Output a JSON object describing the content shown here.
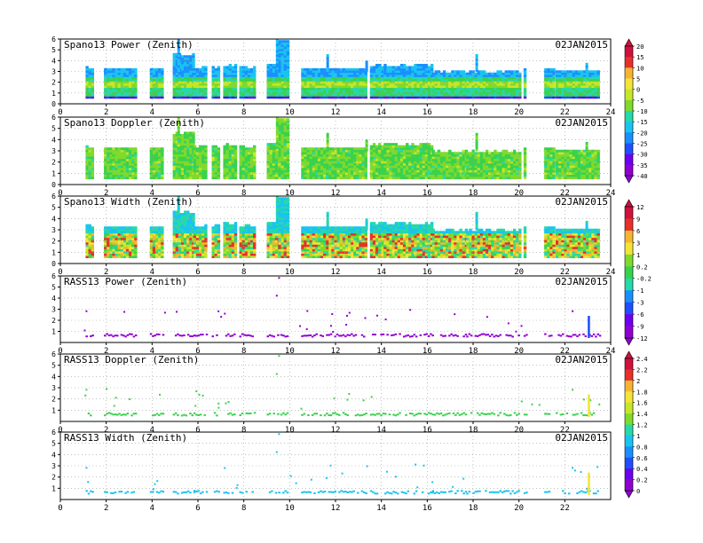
{
  "chart_data": [
    {
      "type": "heatmap",
      "title": "Spano13 Power (Zenith)",
      "date": "02JAN2015",
      "x_ticks": [
        "0",
        "2",
        "4",
        "6",
        "8",
        "10",
        "12",
        "14",
        "16",
        "18",
        "20",
        "22",
        "24"
      ],
      "y_ticks": [
        "0",
        "1",
        "2",
        "3",
        "4",
        "5",
        "6"
      ],
      "xlim": [
        0,
        24
      ],
      "ylim": [
        0,
        6
      ],
      "colorbar_ticks": [
        "20",
        "15",
        "10",
        "5",
        "0",
        "-5",
        "-10",
        "-15",
        "-20",
        "-25",
        "-30",
        "-35",
        "-40"
      ]
    },
    {
      "type": "heatmap",
      "title": "Spano13 Doppler (Zenith)",
      "date": "02JAN2015",
      "x_ticks": [
        "0",
        "2",
        "4",
        "6",
        "8",
        "10",
        "12",
        "14",
        "16",
        "18",
        "20",
        "22",
        "24"
      ],
      "y_ticks": [
        "0",
        "1",
        "2",
        "3",
        "4",
        "5",
        "6"
      ],
      "xlim": [
        0,
        24
      ],
      "ylim": [
        0,
        6
      ]
    },
    {
      "type": "heatmap",
      "title": "Spano13 Width (Zenith)",
      "date": "02JAN2015",
      "x_ticks": [
        "0",
        "2",
        "4",
        "6",
        "8",
        "10",
        "12",
        "14",
        "16",
        "18",
        "20",
        "22",
        "24"
      ],
      "y_ticks": [
        "0",
        "1",
        "2",
        "3",
        "4",
        "5",
        "6"
      ],
      "xlim": [
        0,
        24
      ],
      "ylim": [
        0,
        6
      ],
      "colorbar_ticks": [
        "12",
        "9",
        "6",
        "3",
        "1",
        "0.2",
        "-0.2",
        "-1",
        "-3",
        "-6",
        "-9",
        "-12"
      ]
    },
    {
      "type": "scatter",
      "title": "RASS13 Power (Zenith)",
      "date": "02JAN2015",
      "x_ticks": [
        "0",
        "2",
        "4",
        "6",
        "8",
        "10",
        "12",
        "14",
        "16",
        "18",
        "20",
        "22",
        "24"
      ],
      "y_ticks": [
        "1",
        "2",
        "3",
        "4",
        "5",
        "6"
      ],
      "xlim": [
        0,
        24
      ],
      "ylim": [
        0,
        6
      ]
    },
    {
      "type": "scatter",
      "title": "RASS13 Doppler (Zenith)",
      "date": "02JAN2015",
      "x_ticks": [
        "0",
        "2",
        "4",
        "6",
        "8",
        "10",
        "12",
        "14",
        "16",
        "18",
        "20",
        "22"
      ],
      "y_ticks": [
        "1",
        "2",
        "3",
        "4",
        "5",
        "6"
      ],
      "xlim": [
        0,
        24
      ],
      "ylim": [
        0,
        6
      ],
      "colorbar_ticks": [
        "2.4",
        "2.2",
        "2",
        "1.8",
        "1.6",
        "1.4",
        "1.2",
        "1",
        "0.8",
        "0.6",
        "0.4",
        "0.2",
        "0"
      ]
    },
    {
      "type": "scatter",
      "title": "RASS13 Width (Zenith)",
      "date": "02JAN2015",
      "x_ticks": [
        "0",
        "2",
        "4",
        "6",
        "8",
        "10",
        "12",
        "14",
        "16",
        "18",
        "20",
        "22"
      ],
      "y_ticks": [
        "1",
        "2",
        "3",
        "4",
        "5",
        "6"
      ],
      "xlim": [
        0,
        24
      ],
      "ylim": [
        0,
        6
      ]
    }
  ],
  "colors": {
    "axis": "#000000",
    "grid": "#999999",
    "palette": [
      "#9000d0",
      "#6d00ef",
      "#3f10ff",
      "#1f4fff",
      "#1a8fff",
      "#19c4f0",
      "#26d9a8",
      "#39d24d",
      "#7fda2c",
      "#c6e62a",
      "#f3e436",
      "#f6b431",
      "#f37a2c",
      "#e8302a",
      "#d0103d"
    ]
  }
}
